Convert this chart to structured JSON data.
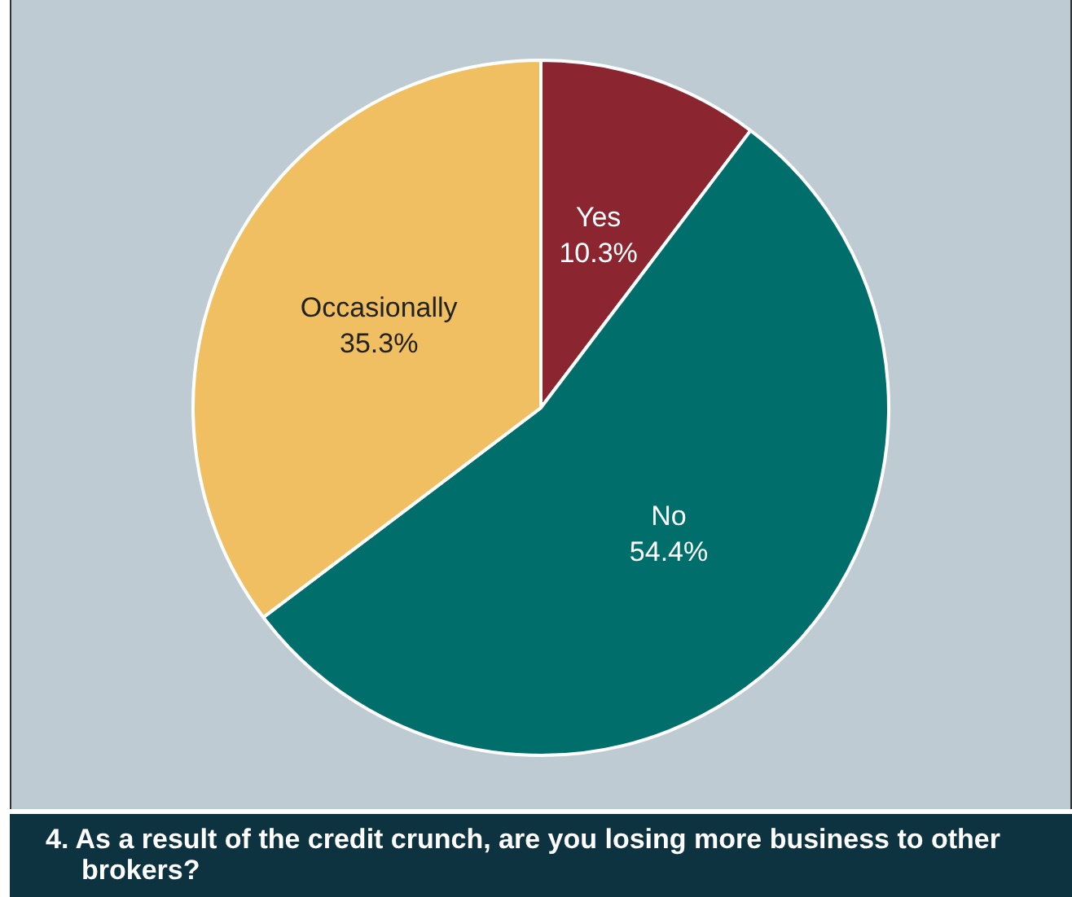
{
  "chart_data": {
    "type": "pie",
    "title": "4. As a result of the credit crunch, are you losing more business to other brokers?",
    "categories": [
      "Yes",
      "No",
      "Occasionally"
    ],
    "values": [
      10.3,
      54.4,
      35.3
    ],
    "value_labels": [
      "10.3%",
      "54.4%",
      "35.3%"
    ],
    "colors": [
      "#8b2631",
      "#006e6b",
      "#f0bf62"
    ]
  }
}
